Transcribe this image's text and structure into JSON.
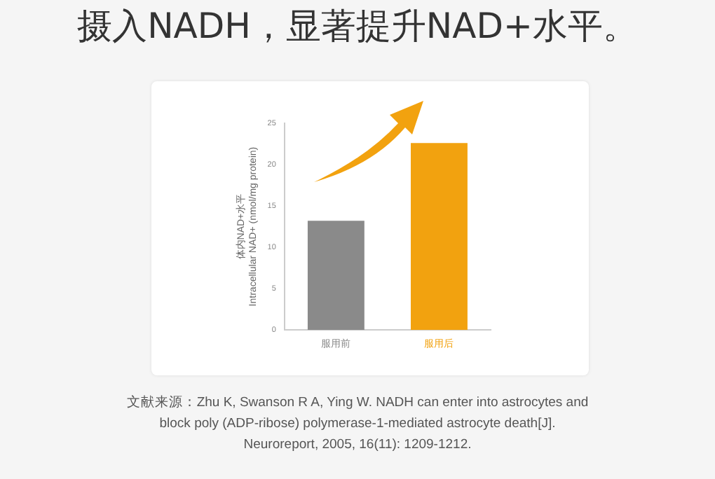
{
  "chart_data": {
    "type": "bar",
    "title": "摄入NADH，显著提升NAD+水平。",
    "ylabel": "体内NAD+水平\nIntracellular NAD+ (nmol/mg protein)",
    "categories": [
      "服用前",
      "服用后"
    ],
    "values": [
      13.2,
      22.6
    ],
    "colors": [
      "#8a8a8a",
      "#f2a20f"
    ],
    "ylim": [
      0,
      25
    ],
    "yticks": [
      0,
      5,
      10,
      15,
      20,
      25
    ],
    "grid": false,
    "annotations": [
      "文献来源：Zhu K, Swanson R A, Ying W. NADH can enter into astrocytes and block poly (ADP-ribose) polymerase-1-mediated astrocyte death[J]. Neuroreport, 2005, 16(11): 1209-1212."
    ]
  }
}
